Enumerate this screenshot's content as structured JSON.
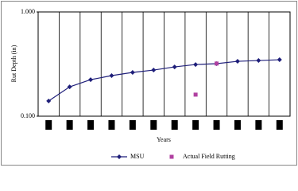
{
  "chart_data": {
    "type": "line",
    "y_label": "Rut Depth (in)",
    "x_label": "Years",
    "categories": [
      null,
      null,
      null,
      null,
      null,
      null,
      null,
      null,
      null,
      null,
      null,
      null
    ],
    "series": [
      {
        "name": "MSU",
        "color": "#1f1f7a",
        "marker": "diamond",
        "values": [
          0.14,
          0.191,
          0.224,
          0.245,
          0.263,
          0.277,
          0.297,
          0.313,
          0.319,
          0.336,
          0.342,
          0.348
        ]
      },
      {
        "name": "Actual Field Rutting",
        "color": "#b040a0",
        "marker": "square",
        "line": false,
        "values": [
          null,
          null,
          null,
          null,
          null,
          null,
          null,
          0.161,
          0.32,
          null,
          null,
          null
        ]
      }
    ],
    "ylim": [
      0.1,
      1
    ],
    "log_y": true,
    "yticks": [
      {
        "value": 0.1,
        "label": "0.100"
      },
      {
        "value": 1,
        "label": "1.000"
      }
    ],
    "grid": true,
    "legend": "bottom"
  }
}
